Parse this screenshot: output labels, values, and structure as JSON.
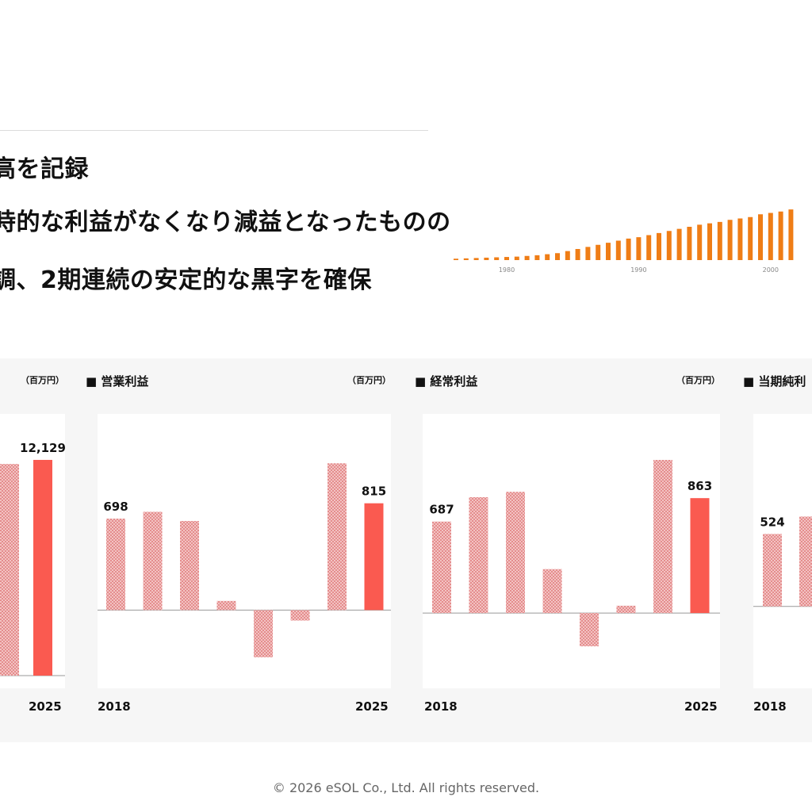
{
  "headline": {
    "line1": "高を記録",
    "line2": "時的な利益がなくなり減益となったものの",
    "line3": "調、2期連続の安定的な黒字を確保"
  },
  "colors": {
    "bar_pattern": "#e8a6a6",
    "bar_highlight": "#fa5a50",
    "mini_bar": "#ef7d16",
    "axis": "#999999",
    "band": "#f6f6f6"
  },
  "footer": "© 2026 eSOL Co., Ltd. All rights reserved.",
  "chart_data": [
    {
      "id": "mini",
      "type": "bar",
      "x_ticks": [
        "1980",
        "1990",
        "2000"
      ],
      "values": [
        0.2,
        0.25,
        0.3,
        0.35,
        0.4,
        0.45,
        0.5,
        0.6,
        0.7,
        0.85,
        1.0,
        1.3,
        1.6,
        1.9,
        2.2,
        2.5,
        2.8,
        3.1,
        3.3,
        3.6,
        3.9,
        4.2,
        4.5,
        4.8,
        5.1,
        5.3,
        5.5,
        5.8,
        6.0,
        6.2,
        6.6,
        6.8,
        7.0,
        7.3
      ],
      "ylim": [
        0,
        8
      ]
    },
    {
      "id": "sales",
      "type": "bar",
      "title": "",
      "unit": "（百万円）",
      "x_first": "",
      "x_last": "2025",
      "values": [
        11900,
        12129
      ],
      "highlight_last": true,
      "labels": [
        null,
        "12,129"
      ],
      "ylim": [
        0,
        14000
      ]
    },
    {
      "id": "operating",
      "type": "bar",
      "title": "■ 営業利益",
      "unit": "（百万円）",
      "x_first": "2018",
      "x_last": "2025",
      "values": [
        698,
        750,
        680,
        70,
        -360,
        -80,
        1120,
        815
      ],
      "highlight_last": true,
      "labels": [
        "698",
        null,
        null,
        null,
        null,
        null,
        null,
        "815"
      ],
      "ylim": [
        -500,
        1400
      ]
    },
    {
      "id": "ordinary",
      "type": "bar",
      "title": "■ 経常利益",
      "unit": "（百万円）",
      "x_first": "2018",
      "x_last": "2025",
      "values": [
        687,
        870,
        910,
        330,
        -250,
        55,
        1150,
        863
      ],
      "highlight_last": true,
      "labels": [
        "687",
        null,
        null,
        null,
        null,
        null,
        null,
        "863"
      ],
      "ylim": [
        -470,
        1400
      ]
    },
    {
      "id": "net",
      "type": "bar",
      "title": "■ 当期純利",
      "unit": "",
      "x_first": "2018",
      "x_last": "",
      "values": [
        524,
        650
      ],
      "highlight_last": false,
      "labels": [
        "524",
        null
      ],
      "ylim": [
        -500,
        1300
      ]
    }
  ]
}
